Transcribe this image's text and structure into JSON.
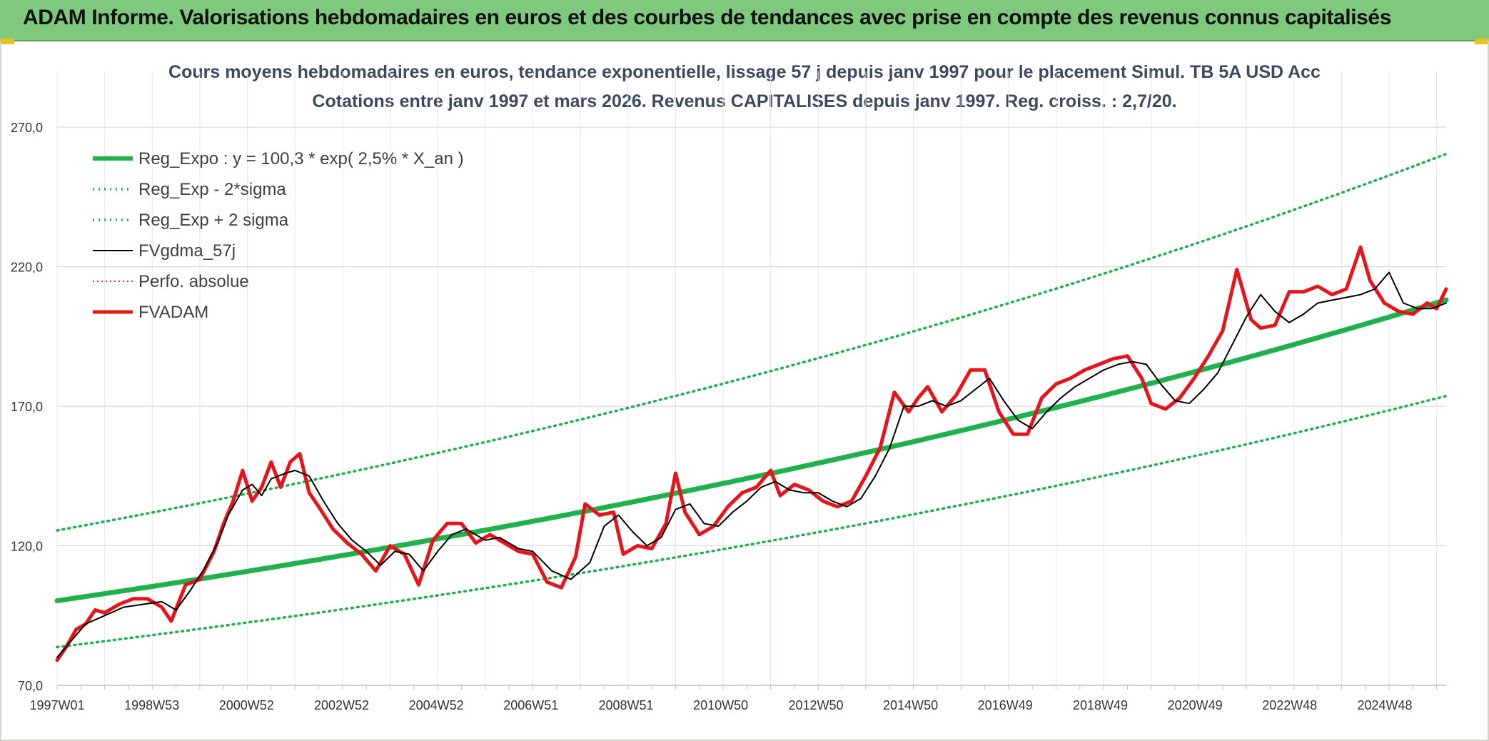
{
  "banner": {
    "title": "ADAM Informe. Valorisations hebdomadaires en euros et des courbes de tendances avec prise en compte des revenus connus capitalisés"
  },
  "colors": {
    "banner": "#7fc97f",
    "trend": "#1fb14c",
    "sigma": "#1fb14c",
    "smooth": "#000000",
    "perfo": "#e0301e",
    "fvadam": "#e8141c"
  },
  "chart_data": {
    "type": "line",
    "title": "Cours moyens hebdomadaires en euros, tendance exponentielle, lissage 57 j depuis janv 1997 pour le placement Simul. TB 5A USD Acc",
    "subtitle": "Cotations entre janv 1997 et mars 2026. Revenus CAPITALISES depuis janv 1997. Reg. croiss. : 2,7/20.",
    "xlabel": "",
    "ylabel": "",
    "xlim": [
      1997.0,
      2026.2
    ],
    "ylim": [
      70,
      290
    ],
    "y_ticks": [
      70,
      120,
      170,
      220,
      270
    ],
    "y_tick_labels": [
      "70,0",
      "120,0",
      "170,0",
      "220,0",
      "270,0"
    ],
    "x_ticks": [
      1997.0,
      1998.99,
      2000.98,
      2002.98,
      2004.97,
      2006.96,
      2008.96,
      2010.95,
      2012.95,
      2014.94,
      2016.93,
      2018.93,
      2020.92,
      2022.91,
      2024.91
    ],
    "x_tick_labels": [
      "1997W01",
      "1998W53",
      "2000W52",
      "2002W52",
      "2004W52",
      "2006W51",
      "2008W51",
      "2010W50",
      "2012W50",
      "2014W50",
      "2016W49",
      "2018W49",
      "2020W49",
      "2022W48",
      "2024W48"
    ],
    "grid": true,
    "legend_position": "top-left",
    "series": [
      {
        "name": "Reg_Expo : y = 100,3 * exp( 2,5% *  X_an )",
        "style": "solid-thick",
        "x": [
          1997,
          2026.2
        ],
        "formula": {
          "a": 100.3,
          "r": 0.025,
          "x0": 1997
        }
      },
      {
        "name": "Reg_Exp - 2*sigma",
        "style": "dotted",
        "x": [
          1997,
          2026.2
        ],
        "formula": {
          "a": 83.7,
          "r": 0.025,
          "x0": 1997
        }
      },
      {
        "name": "Reg_Exp + 2 sigma",
        "style": "dotted",
        "x": [
          1997,
          2026.2
        ],
        "formula": {
          "a": 125.5,
          "r": 0.025,
          "x0": 1997
        }
      },
      {
        "name": "FVgdma_57j",
        "style": "solid-thin",
        "x": [
          1997.0,
          1997.3,
          1997.6,
          1998.0,
          1998.4,
          1998.8,
          1999.2,
          1999.5,
          1999.8,
          2000.1,
          2000.4,
          2000.6,
          2000.9,
          2001.1,
          2001.3,
          2001.5,
          2001.8,
          2002.0,
          2002.3,
          2002.6,
          2002.9,
          2003.2,
          2003.5,
          2003.8,
          2004.1,
          2004.4,
          2004.7,
          2005.0,
          2005.3,
          2005.6,
          2006.0,
          2006.3,
          2006.7,
          2007.0,
          2007.4,
          2007.8,
          2008.2,
          2008.5,
          2008.8,
          2009.1,
          2009.4,
          2009.7,
          2010.0,
          2010.3,
          2010.6,
          2010.9,
          2011.2,
          2011.5,
          2011.8,
          2012.1,
          2012.4,
          2012.7,
          2013.0,
          2013.3,
          2013.6,
          2013.9,
          2014.2,
          2014.5,
          2014.8,
          2015.1,
          2015.4,
          2015.7,
          2016.0,
          2016.3,
          2016.6,
          2016.9,
          2017.2,
          2017.5,
          2017.8,
          2018.1,
          2018.4,
          2018.7,
          2019.0,
          2019.3,
          2019.6,
          2019.9,
          2020.2,
          2020.5,
          2020.8,
          2021.1,
          2021.4,
          2021.7,
          2022.0,
          2022.3,
          2022.6,
          2022.9,
          2023.2,
          2023.5,
          2023.8,
          2024.1,
          2024.4,
          2024.7,
          2025.0,
          2025.3,
          2025.6,
          2025.9,
          2026.2
        ],
        "values": [
          80,
          86,
          92,
          95,
          98,
          99,
          100,
          97,
          104,
          112,
          122,
          131,
          140,
          142,
          138,
          144,
          146,
          147,
          145,
          136,
          128,
          122,
          118,
          113,
          118,
          117,
          111,
          118,
          124,
          126,
          122,
          123,
          119,
          118,
          111,
          108,
          114,
          127,
          131,
          125,
          120,
          123,
          133,
          135,
          128,
          127,
          132,
          136,
          141,
          143,
          140,
          139,
          139,
          136,
          134,
          137,
          145,
          155,
          170,
          170,
          172,
          170,
          172,
          176,
          180,
          172,
          165,
          162,
          168,
          173,
          177,
          180,
          183,
          185,
          186,
          185,
          178,
          172,
          171,
          176,
          182,
          192,
          202,
          210,
          204,
          200,
          203,
          207,
          208,
          209,
          210,
          212,
          218,
          207,
          205,
          205,
          207
        ]
      },
      {
        "name": "Perfo. absolue",
        "style": "dotted",
        "x": [],
        "values": []
      },
      {
        "name": "FVADAM",
        "style": "solid-thick",
        "x": [
          1997.0,
          1997.2,
          1997.4,
          1997.6,
          1997.8,
          1998.0,
          1998.3,
          1998.6,
          1998.9,
          1999.2,
          1999.4,
          1999.7,
          2000.0,
          2000.3,
          2000.5,
          2000.7,
          2000.9,
          2001.1,
          2001.3,
          2001.5,
          2001.7,
          2001.9,
          2002.1,
          2002.3,
          2002.5,
          2002.8,
          2003.1,
          2003.4,
          2003.7,
          2004.0,
          2004.3,
          2004.6,
          2004.9,
          2005.2,
          2005.5,
          2005.8,
          2006.1,
          2006.4,
          2006.7,
          2007.0,
          2007.3,
          2007.6,
          2007.9,
          2008.1,
          2008.4,
          2008.7,
          2008.9,
          2009.2,
          2009.5,
          2009.8,
          2010.0,
          2010.2,
          2010.5,
          2010.8,
          2011.1,
          2011.4,
          2011.7,
          2012.0,
          2012.2,
          2012.5,
          2012.8,
          2013.1,
          2013.4,
          2013.7,
          2014.0,
          2014.3,
          2014.6,
          2014.9,
          2015.1,
          2015.3,
          2015.6,
          2015.9,
          2016.2,
          2016.5,
          2016.8,
          2017.1,
          2017.4,
          2017.7,
          2018.0,
          2018.3,
          2018.6,
          2018.9,
          2019.2,
          2019.5,
          2019.8,
          2020.0,
          2020.3,
          2020.6,
          2020.9,
          2021.2,
          2021.5,
          2021.8,
          2022.1,
          2022.3,
          2022.6,
          2022.9,
          2023.2,
          2023.5,
          2023.8,
          2024.1,
          2024.4,
          2024.6,
          2024.9,
          2025.2,
          2025.5,
          2025.8,
          2026.0,
          2026.2
        ],
        "values": [
          79,
          84,
          90,
          92,
          97,
          96,
          99,
          101,
          101,
          98,
          93,
          106,
          108,
          118,
          128,
          136,
          147,
          136,
          141,
          150,
          141,
          150,
          153,
          139,
          134,
          126,
          121,
          117,
          111,
          120,
          117,
          106,
          122,
          128,
          128,
          121,
          124,
          121,
          118,
          117,
          107,
          105,
          116,
          135,
          131,
          132,
          117,
          120,
          119,
          128,
          146,
          132,
          124,
          127,
          134,
          139,
          141,
          147,
          138,
          142,
          140,
          136,
          134,
          136,
          145,
          155,
          175,
          168,
          173,
          177,
          168,
          174,
          183,
          183,
          168,
          160,
          160,
          173,
          178,
          180,
          183,
          185,
          187,
          188,
          180,
          171,
          169,
          173,
          180,
          188,
          197,
          219,
          201,
          198,
          199,
          211,
          211,
          213,
          210,
          212,
          227,
          215,
          207,
          204,
          203,
          207,
          205,
          212
        ]
      }
    ]
  }
}
